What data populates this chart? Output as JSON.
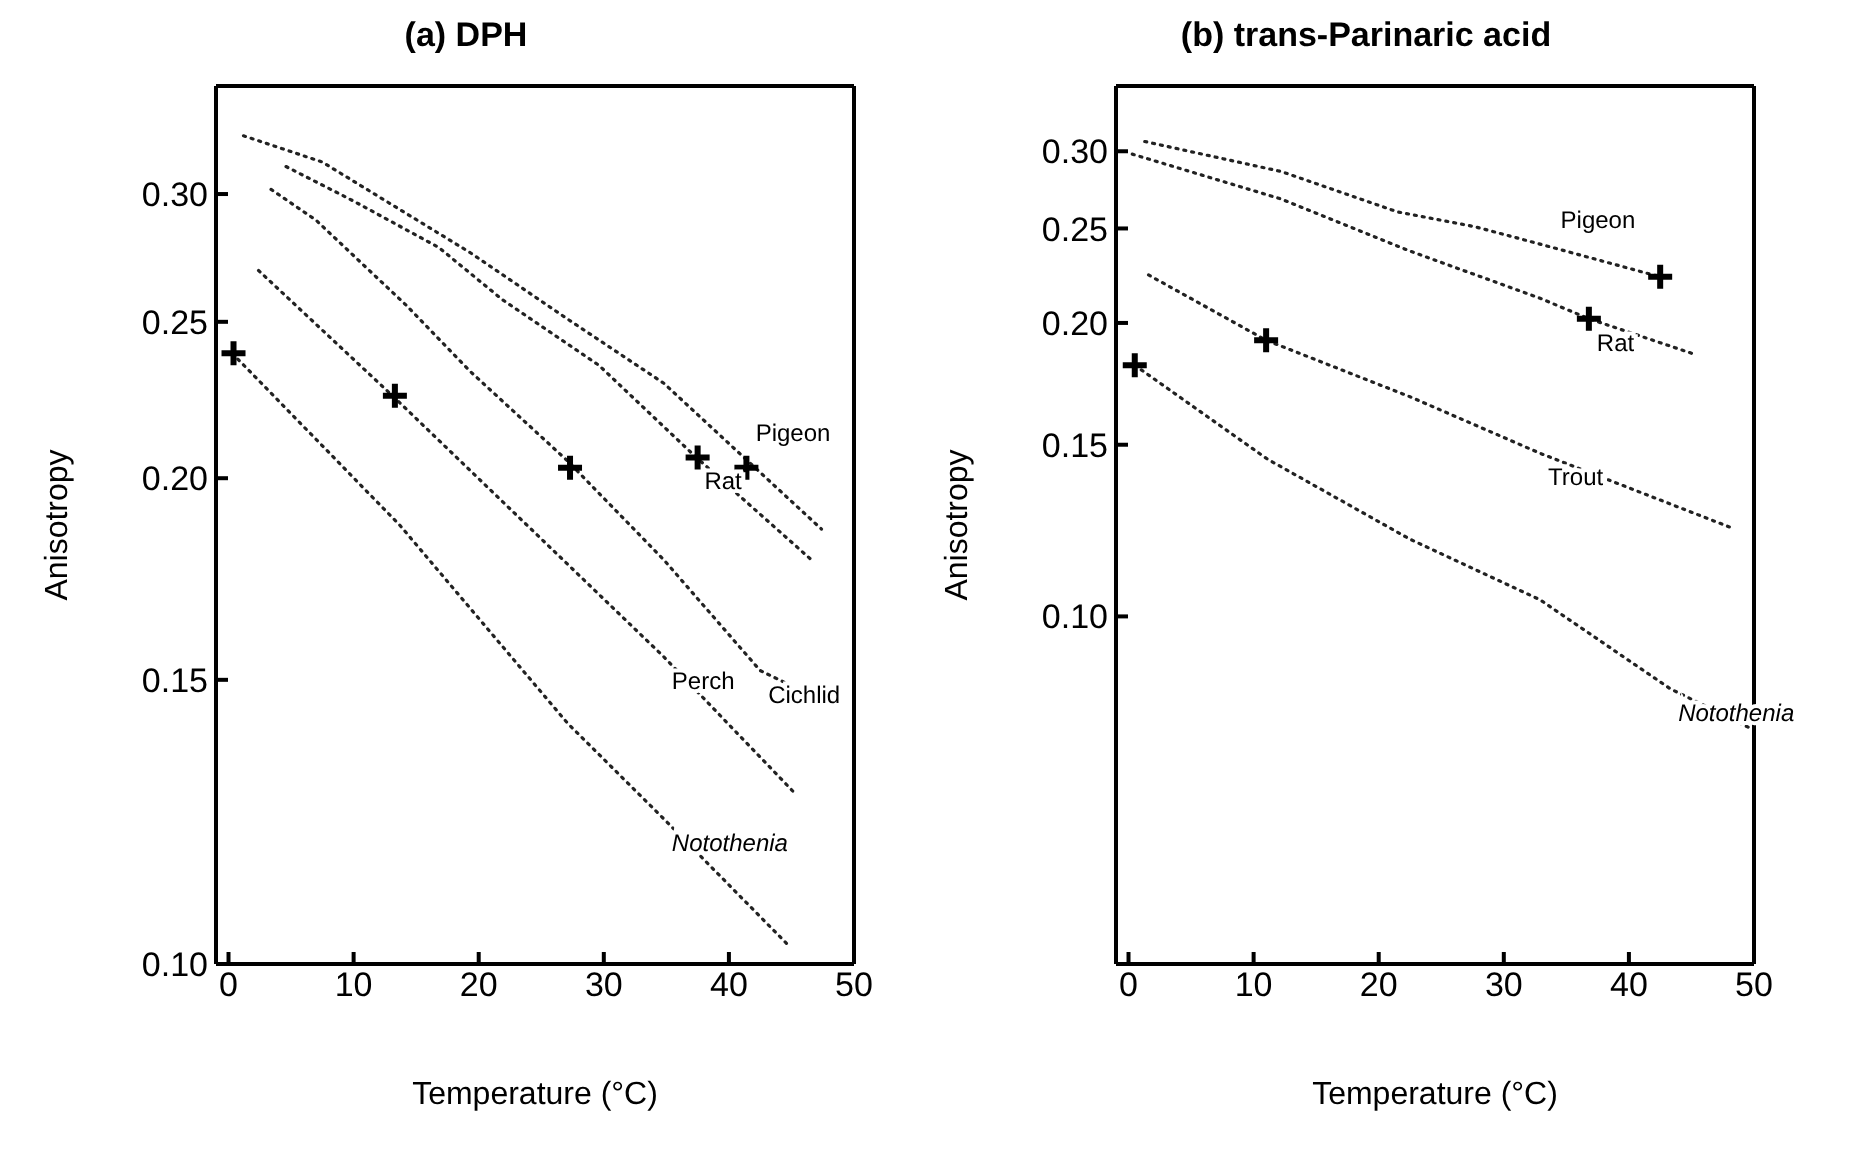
{
  "chart_data": [
    {
      "type": "line",
      "title": "(a) DPH",
      "xlabel": "Temperature (°C)",
      "ylabel": "Anisotropy",
      "log": "y",
      "xlim": [
        -1,
        50
      ],
      "ylim": [
        0.1,
        0.35
      ],
      "xticks": [
        0,
        10,
        20,
        30,
        40,
        50
      ],
      "yticks": [
        {
          "value": 0.1,
          "label": "0.10"
        },
        {
          "value": 0.15,
          "label": "0.15"
        },
        {
          "value": 0.2,
          "label": "0.20"
        },
        {
          "value": 0.25,
          "label": "0.25"
        },
        {
          "value": 0.3,
          "label": "0.30"
        }
      ],
      "line_style": "dotted",
      "marker": "none",
      "series": [
        {
          "name": "Pigeon",
          "color": "#222222",
          "x": [
            1.2,
            7.5,
            19.3,
            27.1,
            34.8,
            41.5,
            47.4
          ],
          "values": [
            0.326,
            0.314,
            0.276,
            0.251,
            0.229,
            0.205,
            0.186
          ]
        },
        {
          "name": "Rat",
          "color": "#222222",
          "x": [
            4.6,
            10,
            16.8,
            21.9,
            29.6,
            37.4,
            46.6
          ],
          "values": [
            0.312,
            0.297,
            0.278,
            0.258,
            0.235,
            0.206,
            0.178
          ]
        },
        {
          "name": "Cichlid",
          "color": "#222222",
          "x": [
            3.4,
            7,
            14.2,
            19.3,
            27.1,
            34.8,
            42.5,
            44.8
          ],
          "values": [
            0.302,
            0.289,
            0.256,
            0.233,
            0.205,
            0.178,
            0.152,
            0.149
          ]
        },
        {
          "name": "Perch",
          "color": "#222222",
          "x": [
            2.4,
            13.1,
            24.5,
            34.8,
            45.1
          ],
          "values": [
            0.269,
            0.225,
            0.185,
            0.155,
            0.128
          ]
        },
        {
          "name": "Notothenia",
          "color": "#222222",
          "x": [
            0.3,
            13.7,
            27.1,
            34.8,
            44.6
          ],
          "values": [
            0.239,
            0.187,
            0.141,
            0.123,
            0.103
          ]
        },
        {
          "type": "scatter",
          "marker": "cross",
          "color": "#000000",
          "x": [
            0.4,
            13.3,
            27.3,
            37.5,
            41.4
          ],
          "values": [
            0.239,
            0.225,
            0.203,
            0.206,
            0.203
          ]
        }
      ]
    },
    {
      "type": "line",
      "title": "(b) trans-Parinaric acid",
      "xlabel": "Temperature (°C)",
      "ylabel": "Anisotropy",
      "log": "y",
      "xlim": [
        -1,
        50
      ],
      "ylim": [
        0.044,
        0.35
      ],
      "xticks": [
        0,
        10,
        20,
        30,
        40,
        50
      ],
      "yticks": [
        {
          "value": 0.1,
          "label": "0.10"
        },
        {
          "value": 0.15,
          "label": "0.15"
        },
        {
          "value": 0.2,
          "label": "0.20"
        },
        {
          "value": 0.25,
          "label": "0.25"
        },
        {
          "value": 0.3,
          "label": "0.30"
        }
      ],
      "line_style": "dotted",
      "marker": "none",
      "series": [
        {
          "name": "Pigeon",
          "color": "#222222",
          "x": [
            1.3,
            12.2,
            21.5,
            27.7,
            31.3,
            33.9,
            42.5
          ],
          "values": [
            0.307,
            0.286,
            0.26,
            0.251,
            0.244,
            0.239,
            0.223
          ]
        },
        {
          "name": "Rat",
          "color": "#222222",
          "x": [
            0.3,
            12.2,
            22.5,
            32.9,
            36.8,
            45.1
          ],
          "values": [
            0.298,
            0.268,
            0.237,
            0.212,
            0.202,
            0.186
          ]
        },
        {
          "name": "Trout",
          "color": "#222222",
          "x": [
            1.6,
            11,
            22.5,
            32.9,
            48.4
          ],
          "values": [
            0.224,
            0.192,
            0.168,
            0.147,
            0.123
          ]
        },
        {
          "name": "Notothenia",
          "color": "#222222",
          "x": [
            0.5,
            11.1,
            22.5,
            32.9,
            43.3,
            49.7
          ],
          "values": [
            0.181,
            0.145,
            0.12,
            0.104,
            0.0843,
            0.0768
          ]
        },
        {
          "type": "scatter",
          "marker": "cross",
          "color": "#000000",
          "x": [
            0.5,
            11,
            36.8,
            42.5
          ],
          "values": [
            0.181,
            0.192,
            0.202,
            0.223
          ]
        }
      ]
    }
  ]
}
